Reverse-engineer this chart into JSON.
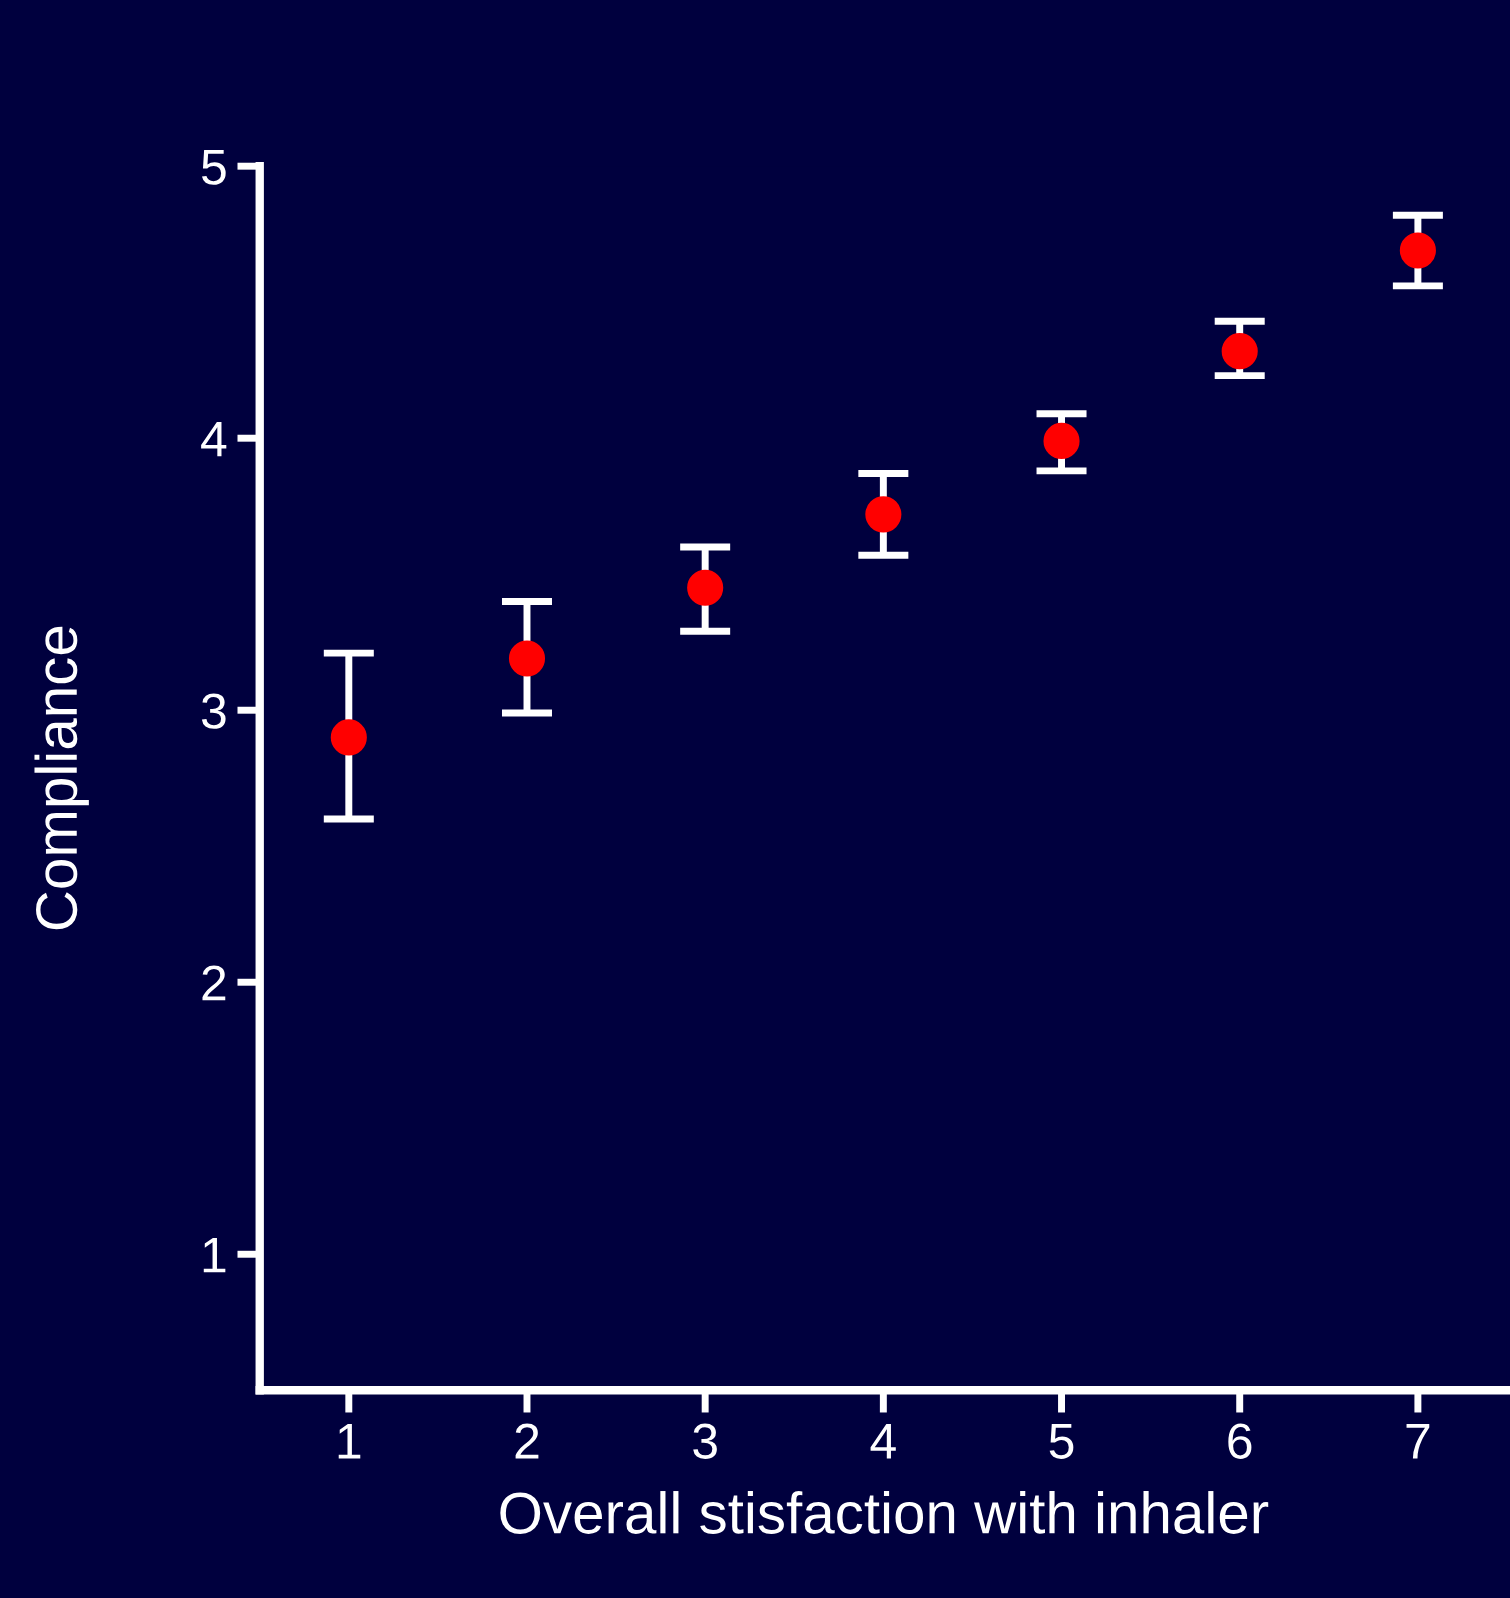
{
  "chart_data": {
    "type": "scatter",
    "xlabel": "Overall stisfaction with inhaler",
    "ylabel": "Compliance",
    "x": [
      1,
      2,
      3,
      4,
      5,
      6,
      7
    ],
    "values": [
      2.9,
      3.19,
      3.45,
      3.72,
      3.99,
      4.32,
      4.69
    ],
    "errors": [
      [
        2.6,
        3.21
      ],
      [
        2.99,
        3.4
      ],
      [
        3.29,
        3.6
      ],
      [
        3.57,
        3.87
      ],
      [
        3.88,
        4.09
      ],
      [
        4.23,
        4.43
      ],
      [
        4.56,
        4.82
      ]
    ],
    "color": "#ff0000",
    "marker": "circle",
    "grid": false,
    "legend": false,
    "xlim": [
      0.5,
      7.5
    ],
    "xticks": [
      1,
      2,
      3,
      4,
      5,
      6,
      7
    ],
    "ylim": [
      0.5,
      5
    ],
    "yticks": [
      1,
      2,
      3,
      4,
      5
    ]
  }
}
